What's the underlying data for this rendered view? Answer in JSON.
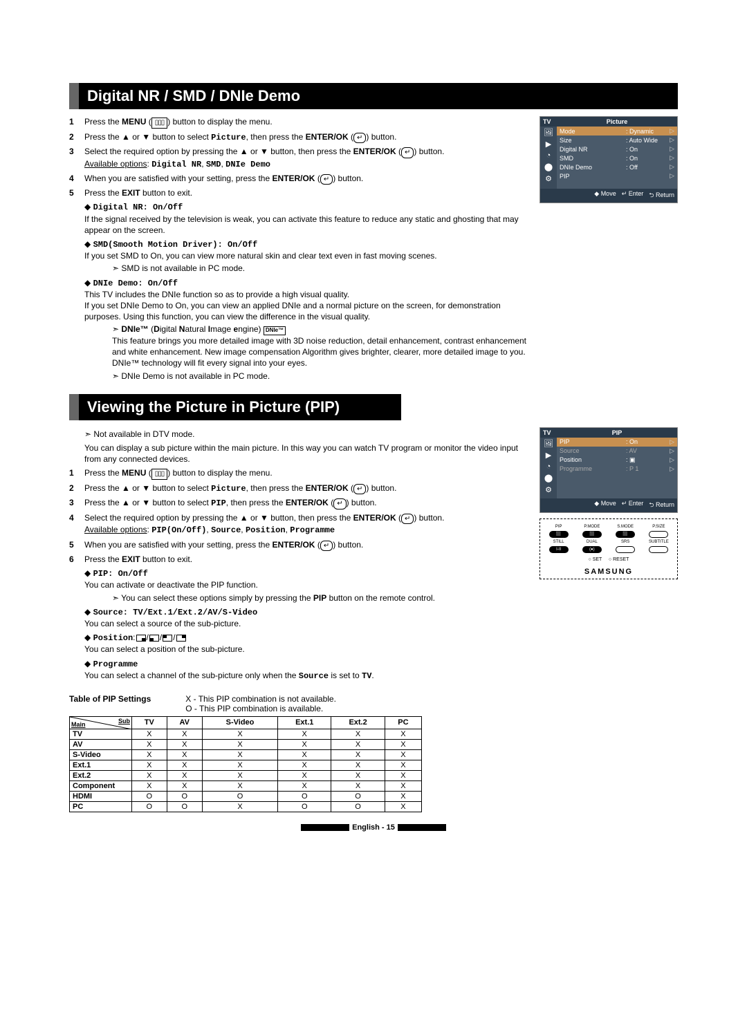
{
  "section1": {
    "title": "Digital NR / SMD / DNIe Demo",
    "steps": [
      {
        "n": "1",
        "html": "Press the <b>MENU</b> (<span class='icon-menu'>▯▯▯</span>) button to display the menu."
      },
      {
        "n": "2",
        "html": "Press the ▲ or ▼ button to select <span class='mono'>Picture</span>, then press the <b>ENTER/OK</b> (<span class='icon-enter'>↵</span>) button."
      },
      {
        "n": "3",
        "html": "Select the required option by pressing the ▲ or ▼ button, then press the <b>ENTER/OK</b> (<span class='icon-enter'>↵</span>) button.<br><span class='underline'>Available options</span>: <span class='mono'>Digital NR</span>, <span class='mono'>SMD</span>, <span class='mono'>DNIe Demo</span>"
      },
      {
        "n": "4",
        "html": "When you are satisfied with your setting, press the <b>ENTER/OK</b> (<span class='icon-enter'>↵</span>) button."
      },
      {
        "n": "5",
        "html": "Press the <b>EXIT</b> button to exit."
      }
    ],
    "bullets": [
      {
        "head": "Digital NR: On/Off",
        "body": "If the signal received by the television is weak, you can activate this feature to reduce any static and ghosting that may appear on the screen.",
        "notes": []
      },
      {
        "head": "SMD(Smooth Motion Driver): On/Off",
        "body": "If you set SMD to On, you can view more natural skin and clear text even in fast moving scenes.",
        "notes": [
          "SMD is not available in PC mode."
        ]
      },
      {
        "head": "DNIe Demo: On/Off",
        "body": "This TV includes the DNIe function so as to provide a high visual quality.<br>If you set DNIe Demo to On, you can view an applied DNIe and a normal picture on the screen, for demonstration purposes. Using this function, you can view the difference in the visual quality.",
        "notes_html": [
          "<b>DNIe™</b> (<b>D</b>igital <b>N</b>atural <b>I</b>mage <b>e</b>ngine) <span class='dnie-badge'>DNIe™</span><br>This feature brings you more detailed image with 3D noise reduction, detail enhancement, contrast enhancement and white enhancement. New image compensation Algorithm gives brighter, clearer, more detailed image to you. DNIe™ technology will fit every signal into your eyes.",
          "DNIe Demo is not available in PC mode."
        ]
      }
    ],
    "osd": {
      "tv": "TV",
      "title": "Picture",
      "rows": [
        {
          "label": "Mode",
          "value": ": Dynamic",
          "active": true
        },
        {
          "label": "Size",
          "value": ": Auto Wide"
        },
        {
          "label": "Digital NR",
          "value": ": On"
        },
        {
          "label": "SMD",
          "value": ": On"
        },
        {
          "label": "DNIe Demo",
          "value": ": Off"
        },
        {
          "label": "PIP",
          "value": ""
        }
      ],
      "footer": [
        "◆ Move",
        "↵ Enter",
        "⮌ Return"
      ]
    }
  },
  "section2": {
    "title": "Viewing the Picture in Picture (PIP)",
    "topnote": "Not available in DTV mode.",
    "intro": "You can display a sub picture within the main picture. In this way you can watch TV program or monitor the video input from any connected devices.",
    "steps": [
      {
        "n": "1",
        "html": "Press the <b>MENU</b> (<span class='icon-menu'>▯▯▯</span>) button to display the menu."
      },
      {
        "n": "2",
        "html": "Press the ▲ or ▼ button to select <span class='mono'>Picture</span>, then press the <b>ENTER/OK</b> (<span class='icon-enter'>↵</span>) button."
      },
      {
        "n": "3",
        "html": "Press the ▲ or ▼ button to select <span class='mono'>PIP</span>, then press the <b>ENTER/OK</b> (<span class='icon-enter'>↵</span>) button."
      },
      {
        "n": "4",
        "html": "Select the required option by pressing the ▲ or ▼ button, then press the <b>ENTER/OK</b> (<span class='icon-enter'>↵</span>) button.<br><span class='underline'>Available options</span>: <span class='mono'>PIP(On/Off)</span>, <span class='mono'>Source</span>, <span class='mono'>Position</span>, <span class='mono'>Programme</span>"
      },
      {
        "n": "5",
        "html": "When you are satisfied with your setting, press the <b>ENTER/OK</b> (<span class='icon-enter'>↵</span>) button."
      },
      {
        "n": "6",
        "html": "Press the <b>EXIT</b> button to exit."
      }
    ],
    "bullets": [
      {
        "head": "PIP: On/Off",
        "body": "You can activate or deactivate the PIP function.",
        "notes": [
          "You can select these options simply by pressing the <b>PIP</b> button on the remote control."
        ]
      },
      {
        "head": "Source: TV/Ext.1/Ext.2/AV/S-Video",
        "body": "You can select a source of the sub-picture."
      },
      {
        "head_html": "<span class='mono'>Position</span>:<span class='icon-pos pos-br'></span>/<span class='icon-pos pos-bl'></span>/<span class='icon-pos pos-tl'></span>/<span class='icon-pos pos-tr'></span>",
        "body": "You can select a position of the sub-picture."
      },
      {
        "head": "Programme",
        "body": "You can select a channel of the sub-picture only when the <span class='mono'>Source</span> is set to <span class='mono'>TV</span>."
      }
    ],
    "osd": {
      "tv": "TV",
      "title": "PIP",
      "rows": [
        {
          "label": "PIP",
          "value": ": On",
          "active": true
        },
        {
          "label": "Source",
          "value": ": AV",
          "grey": true
        },
        {
          "label": "Position",
          "value": ": ▣"
        },
        {
          "label": "Programme",
          "value": ": P   1",
          "grey": true
        }
      ],
      "footer": [
        "◆ Move",
        "↵ Enter",
        "⮌ Return"
      ]
    },
    "remote": {
      "row1": [
        "PIP",
        "P.MODE",
        "S.MODE",
        "P.SIZE"
      ],
      "row2": [
        "STILL",
        "DUAL",
        "SRS",
        "SUBTITLE"
      ],
      "row3": [
        "SET",
        "",
        "RESET",
        ""
      ],
      "brand": "SAMSUNG"
    },
    "table": {
      "title": "Table of PIP Settings",
      "legendX": "X - This PIP combination is not available.",
      "legendO": "O - This PIP combination is available.",
      "diag_main": "Main",
      "diag_sub": "Sub",
      "cols": [
        "TV",
        "AV",
        "S-Video",
        "Ext.1",
        "Ext.2",
        "PC"
      ],
      "rows": [
        {
          "lbl": "TV",
          "cells": [
            "X",
            "X",
            "X",
            "X",
            "X",
            "X"
          ]
        },
        {
          "lbl": "AV",
          "cells": [
            "X",
            "X",
            "X",
            "X",
            "X",
            "X"
          ]
        },
        {
          "lbl": "S-Video",
          "cells": [
            "X",
            "X",
            "X",
            "X",
            "X",
            "X"
          ]
        },
        {
          "lbl": "Ext.1",
          "cells": [
            "X",
            "X",
            "X",
            "X",
            "X",
            "X"
          ]
        },
        {
          "lbl": "Ext.2",
          "cells": [
            "X",
            "X",
            "X",
            "X",
            "X",
            "X"
          ]
        },
        {
          "lbl": "Component",
          "cells": [
            "X",
            "X",
            "X",
            "X",
            "X",
            "X"
          ]
        },
        {
          "lbl": "HDMI",
          "cells": [
            "O",
            "O",
            "O",
            "O",
            "O",
            "X"
          ]
        },
        {
          "lbl": "PC",
          "cells": [
            "O",
            "O",
            "X",
            "O",
            "O",
            "X"
          ]
        }
      ]
    }
  },
  "footer": "English - 15"
}
